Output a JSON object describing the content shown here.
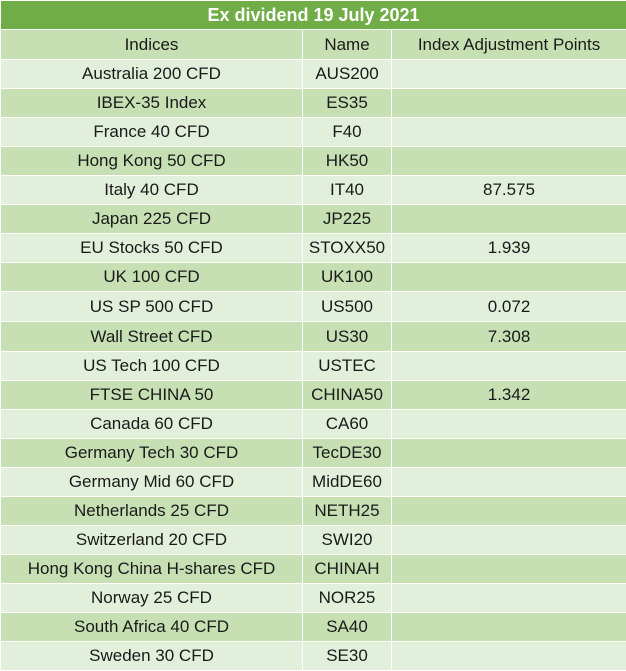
{
  "title": "Ex dividend 19 July 2021",
  "columns": [
    "Indices",
    "Name",
    "Index Adjustment Points"
  ],
  "rows": [
    {
      "index": "Australia 200 CFD",
      "name": "AUS200",
      "points": ""
    },
    {
      "index": "IBEX-35 Index",
      "name": "ES35",
      "points": ""
    },
    {
      "index": "France 40 CFD",
      "name": "F40",
      "points": ""
    },
    {
      "index": "Hong Kong 50 CFD",
      "name": "HK50",
      "points": ""
    },
    {
      "index": "Italy 40 CFD",
      "name": "IT40",
      "points": "87.575"
    },
    {
      "index": "Japan 225 CFD",
      "name": "JP225",
      "points": ""
    },
    {
      "index": "EU Stocks 50 CFD",
      "name": "STOXX50",
      "points": "1.939"
    },
    {
      "index": "UK 100 CFD",
      "name": "UK100",
      "points": ""
    },
    {
      "index": "US SP 500 CFD",
      "name": "US500",
      "points": "0.072"
    },
    {
      "index": "Wall Street CFD",
      "name": "US30",
      "points": "7.308"
    },
    {
      "index": "US Tech 100 CFD",
      "name": "USTEC",
      "points": ""
    },
    {
      "index": "FTSE CHINA 50",
      "name": "CHINA50",
      "points": "1.342"
    },
    {
      "index": "Canada 60 CFD",
      "name": "CA60",
      "points": ""
    },
    {
      "index": "Germany Tech 30 CFD",
      "name": "TecDE30",
      "points": ""
    },
    {
      "index": "Germany Mid 60 CFD",
      "name": "MidDE60",
      "points": ""
    },
    {
      "index": "Netherlands 25 CFD",
      "name": "NETH25",
      "points": ""
    },
    {
      "index": "Switzerland 20 CFD",
      "name": "SWI20",
      "points": ""
    },
    {
      "index": "Hong Kong China H-shares CFD",
      "name": "CHINAH",
      "points": ""
    },
    {
      "index": "Norway 25 CFD",
      "name": "NOR25",
      "points": ""
    },
    {
      "index": "South Africa 40 CFD",
      "name": "SA40",
      "points": ""
    },
    {
      "index": "Sweden 30 CFD",
      "name": "SE30",
      "points": ""
    }
  ],
  "colors": {
    "title_bg": "#70ad47",
    "header_bg": "#c6e0b4",
    "row_light": "#e2efda",
    "row_dark": "#c6e0b4"
  }
}
